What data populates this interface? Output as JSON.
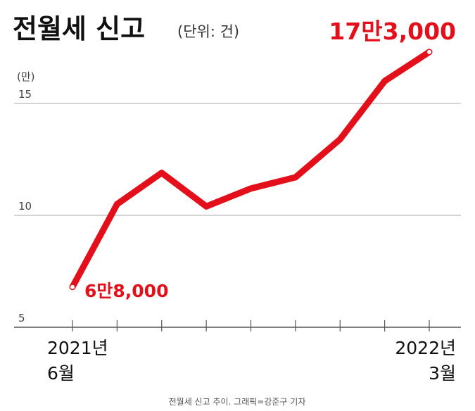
{
  "chart_data": {
    "type": "line",
    "title": "전월세 신고",
    "subtitle": "(단위: 건)",
    "y_unit": "(만)",
    "caption": "전월세 신고 추이. 그래픽=강준구 기자",
    "categories": [
      "2021년 6월",
      null,
      null,
      null,
      null,
      null,
      null,
      null,
      "2022년 3월"
    ],
    "series": [
      {
        "name": "전월세 신고",
        "color": "#e3101b",
        "values": [
          6.8,
          10.5,
          11.9,
          10.4,
          11.2,
          11.7,
          13.4,
          16.0,
          17.3
        ],
        "value_labels": [
          "6만8,000",
          null,
          null,
          null,
          null,
          null,
          null,
          null,
          "17만3,000"
        ]
      }
    ],
    "ylim": [
      5,
      17.5
    ],
    "yticks": [
      5,
      10,
      15
    ],
    "grid": true
  }
}
